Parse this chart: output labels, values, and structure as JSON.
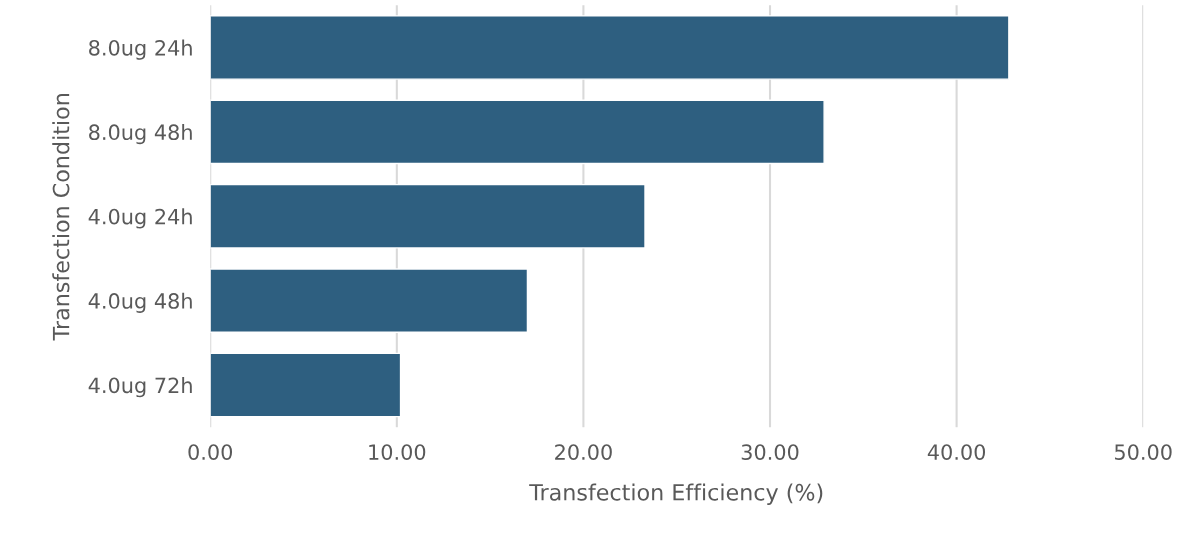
{
  "chart_data": {
    "type": "bar",
    "orientation": "horizontal",
    "xlabel": "Transfection Efficiency (%)",
    "ylabel": "Transfection Condition",
    "categories": [
      "8.0ug 24h",
      "8.0ug 48h",
      "4.0ug 24h",
      "4.0ug 48h",
      "4.0ug 72h"
    ],
    "series": [
      {
        "color": "#2e5f80",
        "values": [
          42.8,
          32.9,
          23.3,
          17.0,
          10.2
        ]
      }
    ],
    "xlim": [
      0,
      50
    ],
    "xticks": [
      {
        "value": 0,
        "label": "0.00"
      },
      {
        "value": 10,
        "label": "10.00"
      },
      {
        "value": 20,
        "label": "20.00"
      },
      {
        "value": 30,
        "label": "30.00"
      },
      {
        "value": 40,
        "label": "40.00"
      },
      {
        "value": 50,
        "label": "50.00"
      }
    ],
    "grid": "x"
  }
}
